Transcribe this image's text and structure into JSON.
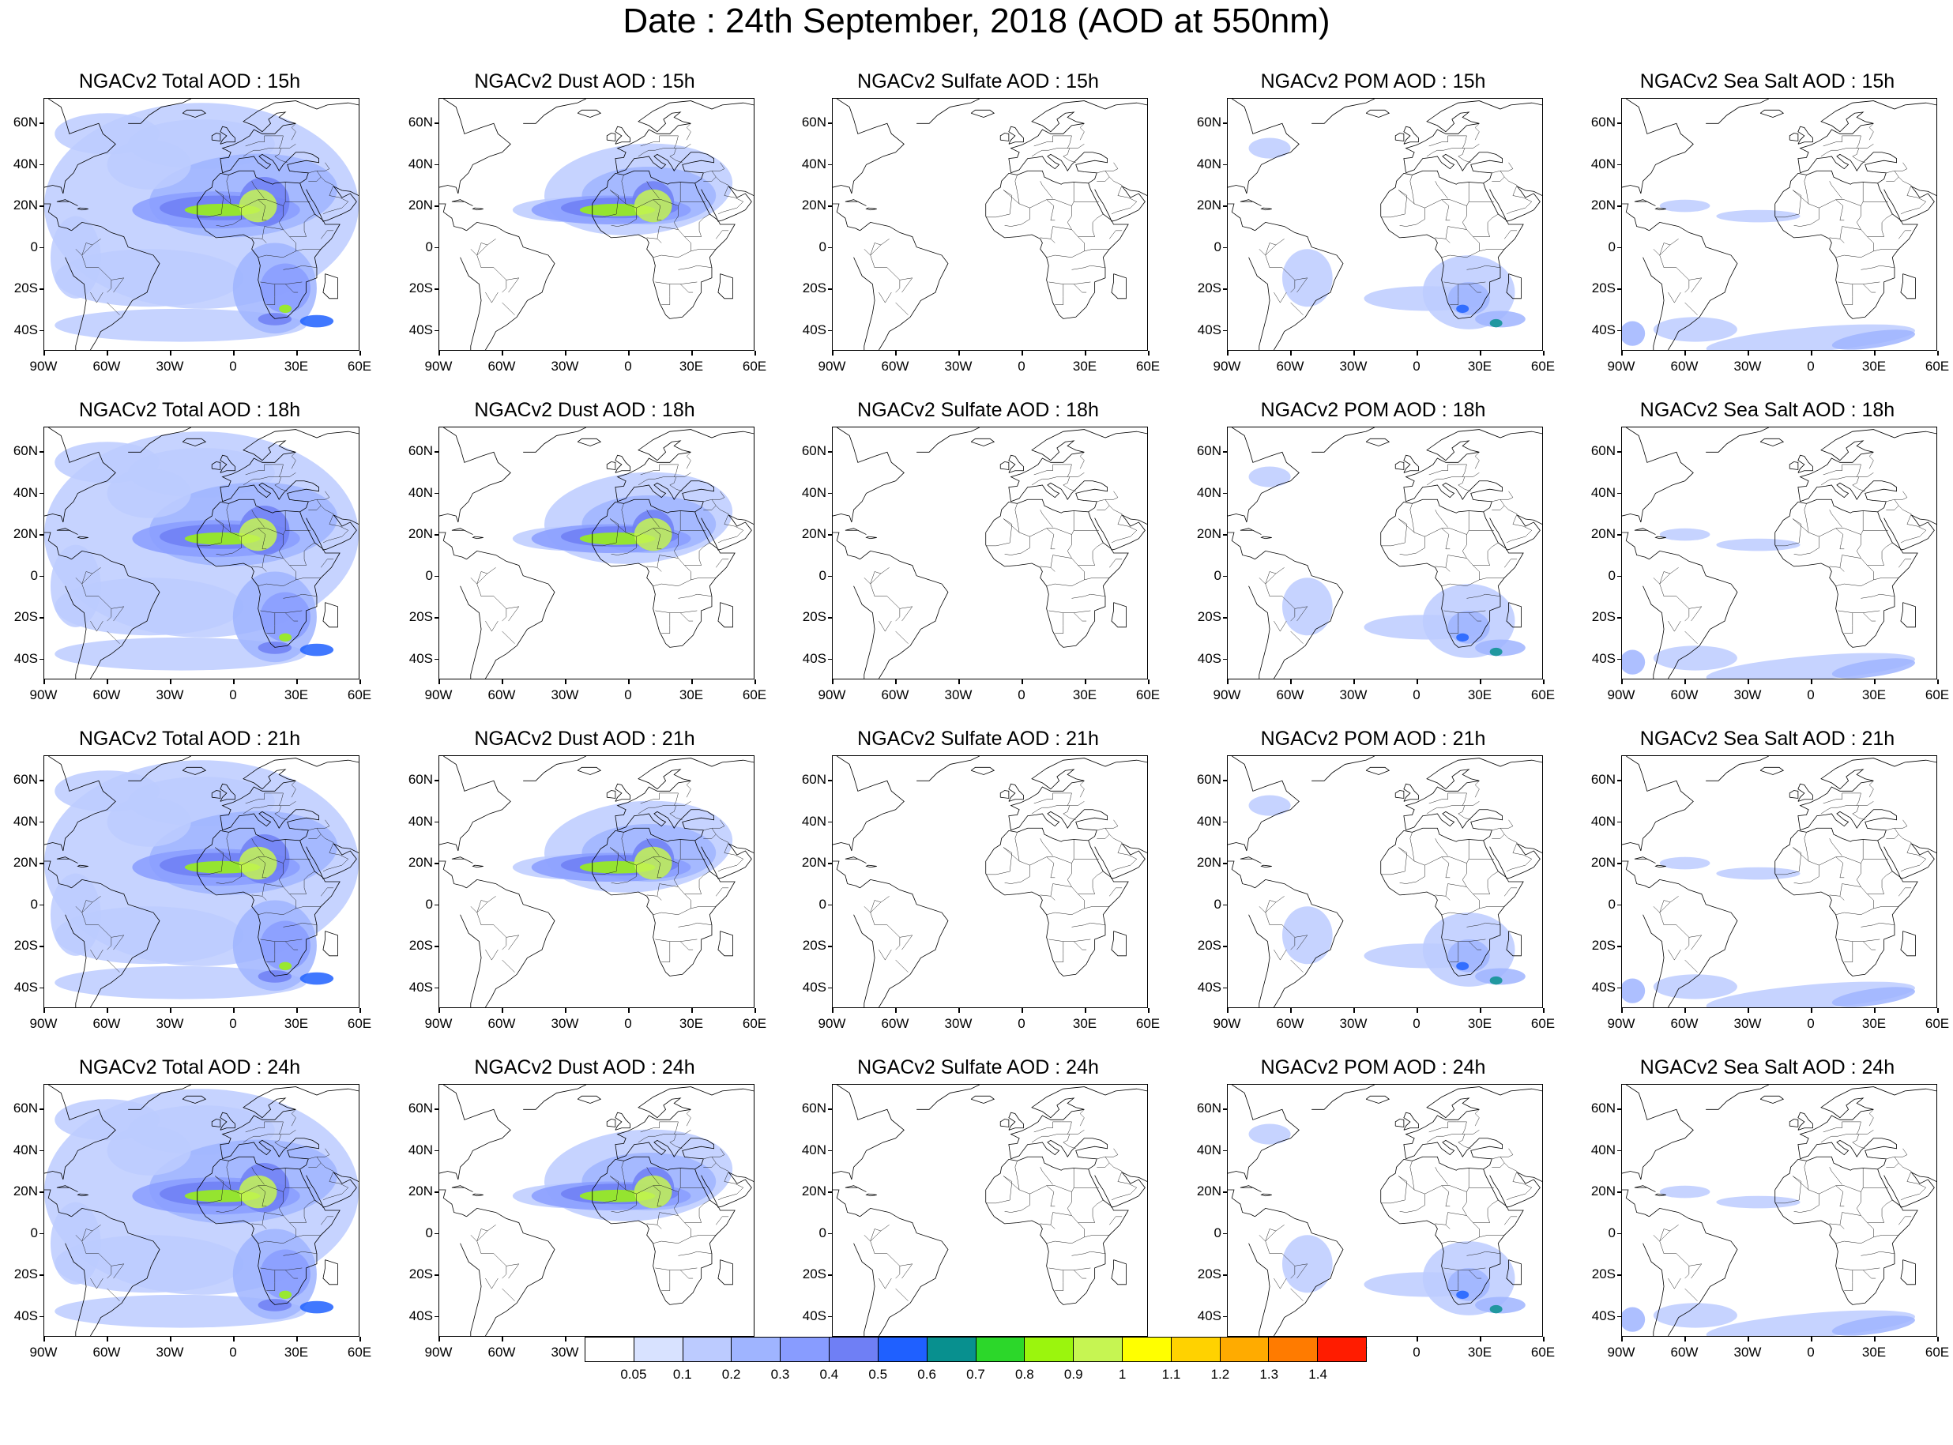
{
  "title": "Date : 24th September, 2018 (AOD at 550nm)",
  "latitude_labels": [
    "60N",
    "40N",
    "20N",
    "0",
    "20S",
    "40S"
  ],
  "latitude_values": [
    60,
    40,
    20,
    0,
    -20,
    -40
  ],
  "longitude_labels": [
    "90W",
    "60W",
    "30W",
    "0",
    "30E",
    "60E"
  ],
  "longitude_values": [
    -90,
    -60,
    -30,
    0,
    30,
    60
  ],
  "map_extent": {
    "lon": [
      -90,
      60
    ],
    "lat": [
      -50,
      72
    ]
  },
  "column_keys": [
    "total",
    "dust",
    "sulfate",
    "pom",
    "seasalt"
  ],
  "panel_titles": [
    [
      "NGACv2 Total AOD : 15h",
      "NGACv2 Dust AOD : 15h",
      "NGACv2 Sulfate AOD : 15h",
      "NGACv2 POM AOD : 15h",
      "NGACv2 Sea Salt AOD : 15h"
    ],
    [
      "NGACv2 Total AOD : 18h",
      "NGACv2 Dust AOD : 18h",
      "NGACv2 Sulfate AOD : 18h",
      "NGACv2 POM AOD : 18h",
      "NGACv2 Sea Salt AOD : 18h"
    ],
    [
      "NGACv2 Total AOD : 21h",
      "NGACv2 Dust AOD : 21h",
      "NGACv2 Sulfate AOD : 21h",
      "NGACv2 POM AOD : 21h",
      "NGACv2 Sea Salt AOD : 21h"
    ],
    [
      "NGACv2 Total AOD : 24h",
      "NGACv2 Dust AOD : 24h",
      "NGACv2 Sulfate AOD : 24h",
      "NGACv2 POM AOD : 24h",
      "NGACv2 Sea Salt  AOD : 24h"
    ]
  ],
  "colorbar": {
    "colors": [
      "#ffffff",
      "#d8e2ff",
      "#bccbff",
      "#9fb4ff",
      "#889cff",
      "#6f7ff5",
      "#1f60ff",
      "#08908f",
      "#2cd72a",
      "#9bf50d",
      "#c6f552",
      "#ffff00",
      "#ffd200",
      "#ffab00",
      "#ff7b00",
      "#ff1c00"
    ],
    "labels": [
      "0.05",
      "0.1",
      "0.2",
      "0.3",
      "0.4",
      "0.5",
      "0.6",
      "0.7",
      "0.8",
      "0.9",
      "1",
      "1.1",
      "1.2",
      "1.3",
      "1.4"
    ]
  }
}
